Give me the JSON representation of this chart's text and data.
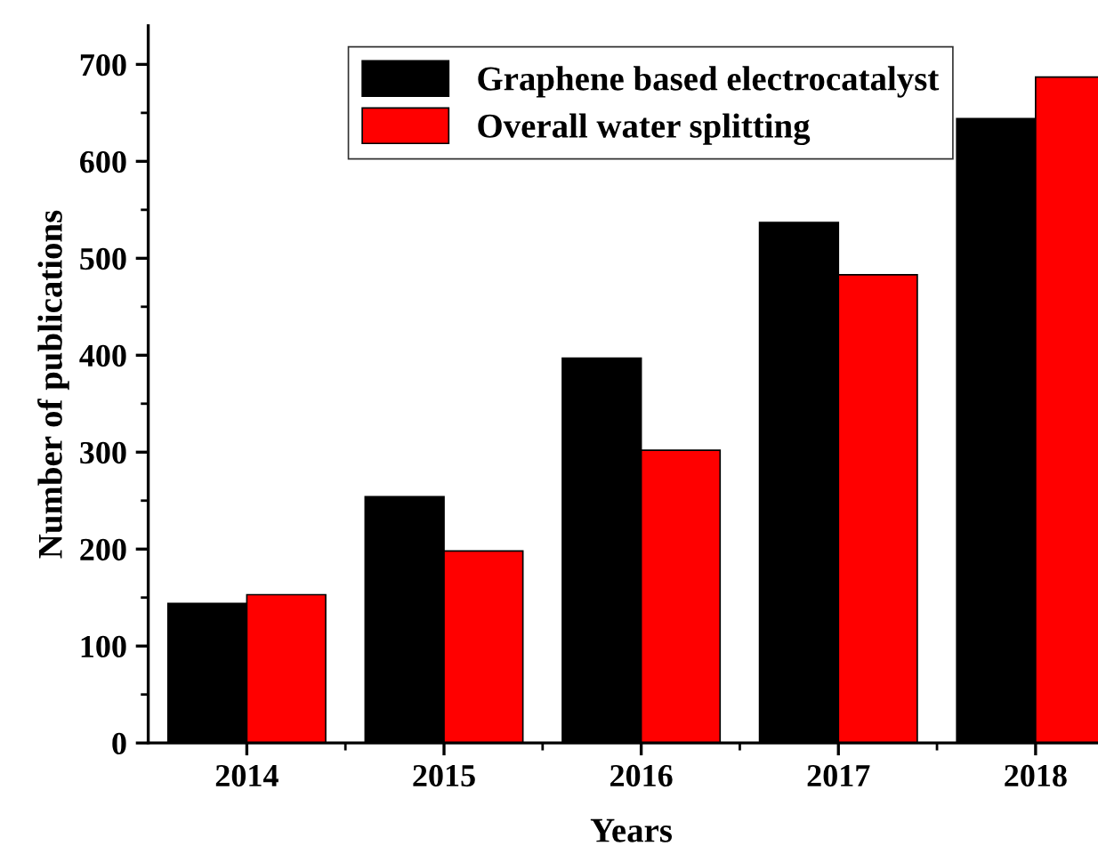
{
  "chart_data": {
    "type": "bar",
    "xlabel": "Years",
    "ylabel": "Number of publications",
    "categories": [
      "2014",
      "2015",
      "2016",
      "2017",
      "2018"
    ],
    "series": [
      {
        "name": "Graphene based electrocatalyst",
        "color": "#000000",
        "values": [
          144,
          254,
          397,
          537,
          644
        ]
      },
      {
        "name": "Overall water splitting",
        "color": "#ff0000",
        "values": [
          153,
          198,
          302,
          483,
          687
        ]
      }
    ],
    "ylim": [
      0,
      740
    ],
    "yticks": [
      0,
      100,
      200,
      300,
      400,
      500,
      600,
      700
    ],
    "grid": false,
    "legend": "top left"
  }
}
